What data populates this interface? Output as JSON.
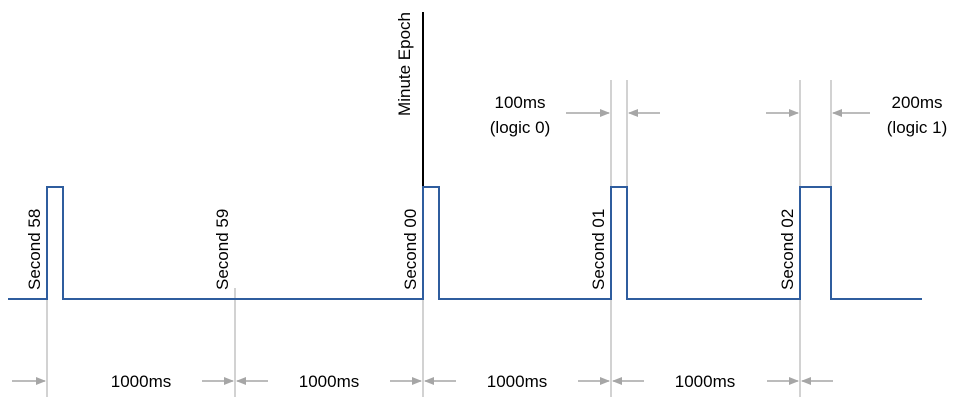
{
  "colors": {
    "signal": "#2f5d9e",
    "guide": "#a6a6a6",
    "arrow": "#a6a6a6",
    "epoch": "#000000"
  },
  "second_labels": [
    "Second 58",
    "Second 59",
    "Second 00",
    "Second 01",
    "Second 02"
  ],
  "epoch_label": "Minute Epoch",
  "pulse_width_labels": {
    "logic0_value": "100ms",
    "logic0_name": "(logic 0)",
    "logic1_value": "200ms",
    "logic1_name": "(logic 1)"
  },
  "interval_labels": [
    "1000ms",
    "1000ms",
    "1000ms",
    "1000ms"
  ]
}
